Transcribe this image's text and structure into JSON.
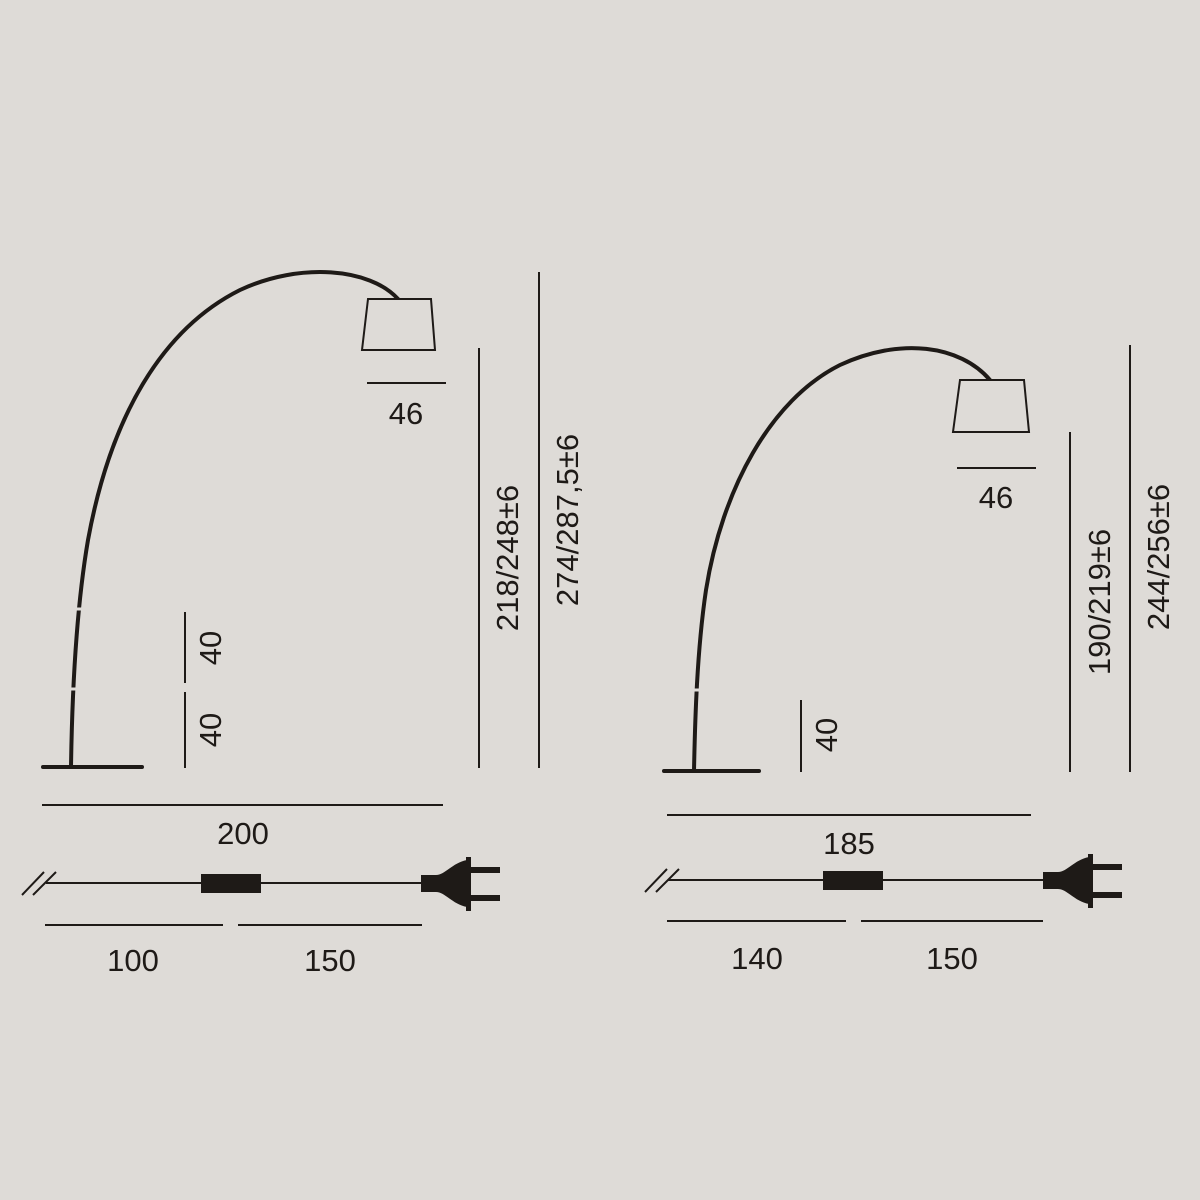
{
  "colors": {
    "background": "#dedbd7",
    "ink": "#1e1a17"
  },
  "lamp_large": {
    "shade_width": "46",
    "base_height_lower": "40",
    "base_height_upper": "40",
    "shade_height": "218/248±6",
    "total_height": "274/287,5±6",
    "reach": "200",
    "cable_to_switch": "100",
    "switch_to_plug": "150"
  },
  "lamp_small": {
    "shade_width": "46",
    "base_height": "40",
    "shade_height": "190/219±6",
    "total_height": "244/256±6",
    "reach": "185",
    "cable_to_switch": "140",
    "switch_to_plug": "150"
  }
}
